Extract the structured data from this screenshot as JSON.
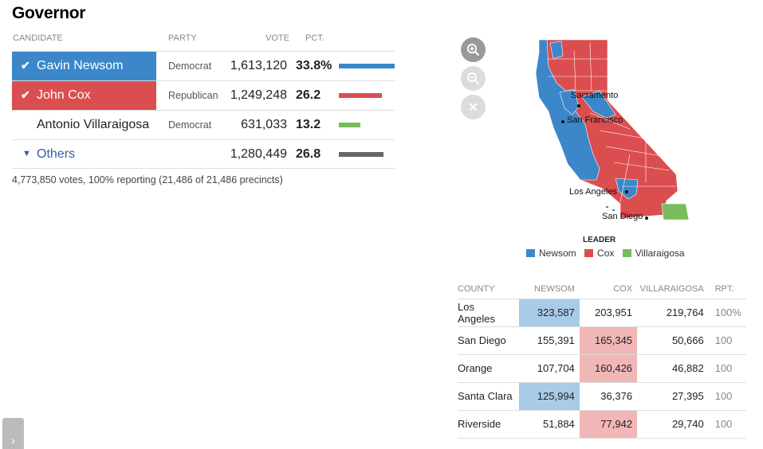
{
  "race": {
    "title": "Governor"
  },
  "headers": {
    "candidate": "CANDIDATE",
    "party": "PARTY",
    "vote": "VOTE",
    "pct": "PCT."
  },
  "candidates": [
    {
      "name": "Gavin Newsom",
      "party": "Democrat",
      "votes": "1,613,120",
      "pct": "33.8%",
      "pct_value": 33.8,
      "winner_icon": "checkmark-icon",
      "color": "#3b87c9"
    },
    {
      "name": "John Cox",
      "party": "Republican",
      "votes": "1,249,248",
      "pct": "26.2",
      "pct_value": 26.2,
      "winner_icon": "checkmark-icon",
      "color": "#db4e50"
    },
    {
      "name": "Antonio Villaraigosa",
      "party": "Democrat",
      "votes": "631,033",
      "pct": "13.2",
      "pct_value": 13.2,
      "color": "#79bc5b"
    },
    {
      "name": "Others",
      "party": "",
      "votes": "1,280,449",
      "pct": "26.8",
      "pct_value": 26.8,
      "expand_icon": "triangle-down-icon",
      "color": "#666666"
    }
  ],
  "summary": "4,773,850 votes, 100% reporting (21,486 of 21,486 precincts)",
  "map": {
    "controls": [
      "zoom-in-icon",
      "zoom-out-icon",
      "close-icon"
    ],
    "labels": {
      "sacramento": "Sacramento",
      "san_francisco": "San Francisco",
      "los_angeles": "Los Angeles",
      "san_diego": "San Diego"
    },
    "legend_title": "LEADER",
    "legend": [
      {
        "label": "Newsom",
        "color": "#3b87c9"
      },
      {
        "label": "Cox",
        "color": "#db4e50"
      },
      {
        "label": "Villaraigosa",
        "color": "#79bc5b"
      }
    ]
  },
  "county_table": {
    "headers": [
      "COUNTY",
      "NEWSOM",
      "COX",
      "VILLARAIGOSA",
      "RPT."
    ],
    "rows": [
      {
        "county": "Los Angeles",
        "newsom": "323,587",
        "cox": "203,951",
        "villaraigosa": "219,764",
        "rpt": "100%",
        "leader": "newsom"
      },
      {
        "county": "San Diego",
        "newsom": "155,391",
        "cox": "165,345",
        "villaraigosa": "50,666",
        "rpt": "100",
        "leader": "cox"
      },
      {
        "county": "Orange",
        "newsom": "107,704",
        "cox": "160,426",
        "villaraigosa": "46,882",
        "rpt": "100",
        "leader": "cox"
      },
      {
        "county": "Santa Clara",
        "newsom": "125,994",
        "cox": "36,376",
        "villaraigosa": "27,395",
        "rpt": "100",
        "leader": "newsom"
      },
      {
        "county": "Riverside",
        "newsom": "51,884",
        "cox": "77,942",
        "villaraigosa": "29,740",
        "rpt": "100",
        "leader": "cox"
      }
    ]
  },
  "side_tab_icon": "chevron-right-icon"
}
